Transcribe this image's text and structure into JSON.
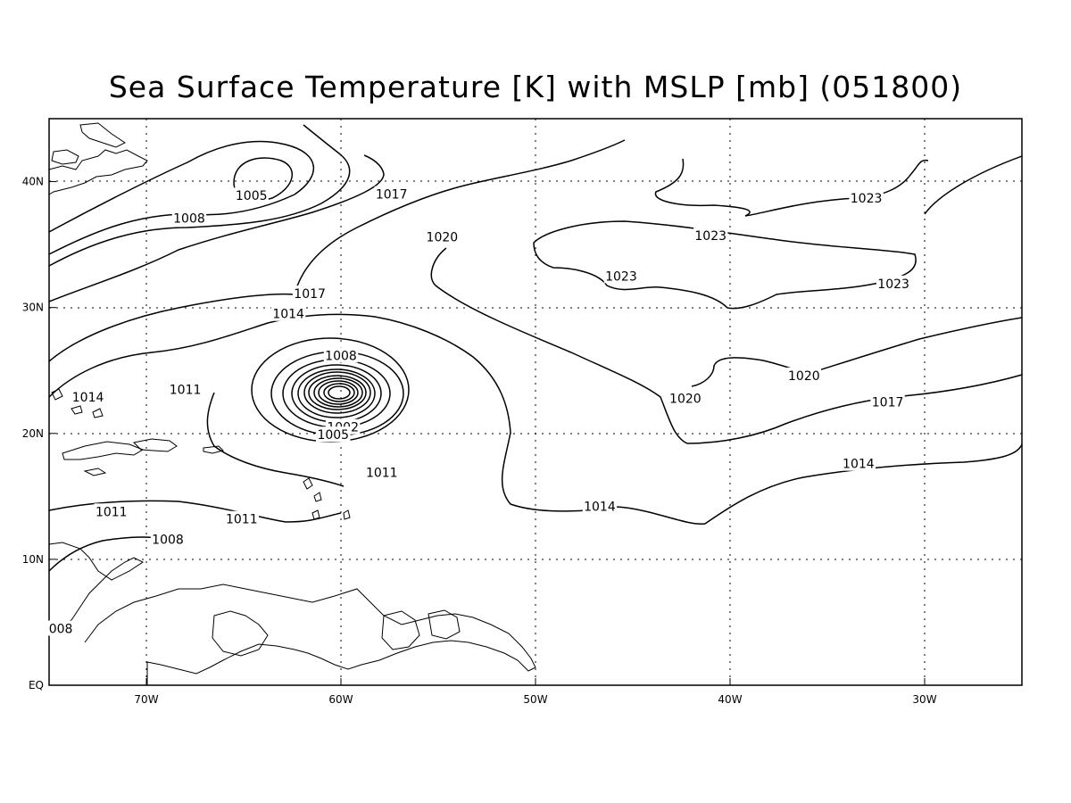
{
  "title": "Sea Surface Temperature [K] with MSLP [mb] (051800)",
  "map": {
    "lon_range": [
      -75,
      -25
    ],
    "lat_range": [
      0,
      45
    ],
    "x_ticks": [
      {
        "lon": -70,
        "label": "70W"
      },
      {
        "lon": -60,
        "label": "60W"
      },
      {
        "lon": -50,
        "label": "50W"
      },
      {
        "lon": -40,
        "label": "40W"
      },
      {
        "lon": -30,
        "label": "30W"
      }
    ],
    "y_ticks": [
      {
        "lat": 0,
        "label": "EQ"
      },
      {
        "lat": 10,
        "label": "10N"
      },
      {
        "lat": 20,
        "label": "20N"
      },
      {
        "lat": 30,
        "label": "30N"
      },
      {
        "lat": 40,
        "label": "40N"
      }
    ],
    "grid": "dotted"
  },
  "isobar_labels": [
    {
      "text": "1017",
      "lon": -57.4,
      "lat": 39.0
    },
    {
      "text": "1005",
      "lon": -64.6,
      "lat": 38.9
    },
    {
      "text": "1008",
      "lon": -67.8,
      "lat": 37.1
    },
    {
      "text": "1020",
      "lon": -54.8,
      "lat": 35.6
    },
    {
      "text": "1023",
      "lon": -33.0,
      "lat": 38.7
    },
    {
      "text": "1023",
      "lon": -41.0,
      "lat": 35.7
    },
    {
      "text": "1023",
      "lon": -45.6,
      "lat": 32.5
    },
    {
      "text": "1023",
      "lon": -31.6,
      "lat": 31.9
    },
    {
      "text": "1017",
      "lon": -61.6,
      "lat": 31.1
    },
    {
      "text": "1014",
      "lon": -62.7,
      "lat": 29.5
    },
    {
      "text": "1008",
      "lon": -60.0,
      "lat": 26.2
    },
    {
      "text": "1011",
      "lon": -68.0,
      "lat": 23.5
    },
    {
      "text": "1014",
      "lon": -73.0,
      "lat": 22.9
    },
    {
      "text": "1020",
      "lon": -42.3,
      "lat": 22.8
    },
    {
      "text": "1020",
      "lon": -36.2,
      "lat": 24.6
    },
    {
      "text": "1017",
      "lon": -31.9,
      "lat": 22.5
    },
    {
      "text": "1002",
      "lon": -59.9,
      "lat": 20.5
    },
    {
      "text": "1005",
      "lon": -60.4,
      "lat": 19.9
    },
    {
      "text": "1014",
      "lon": -33.4,
      "lat": 17.6
    },
    {
      "text": "1011",
      "lon": -57.9,
      "lat": 16.9
    },
    {
      "text": "1011",
      "lon": -71.8,
      "lat": 13.8
    },
    {
      "text": "1011",
      "lon": -65.1,
      "lat": 13.2
    },
    {
      "text": "1014",
      "lon": -46.7,
      "lat": 14.2
    },
    {
      "text": "1008",
      "lon": -68.9,
      "lat": 11.6
    },
    {
      "text": "008",
      "lon": -74.4,
      "lat": 4.5
    }
  ]
}
